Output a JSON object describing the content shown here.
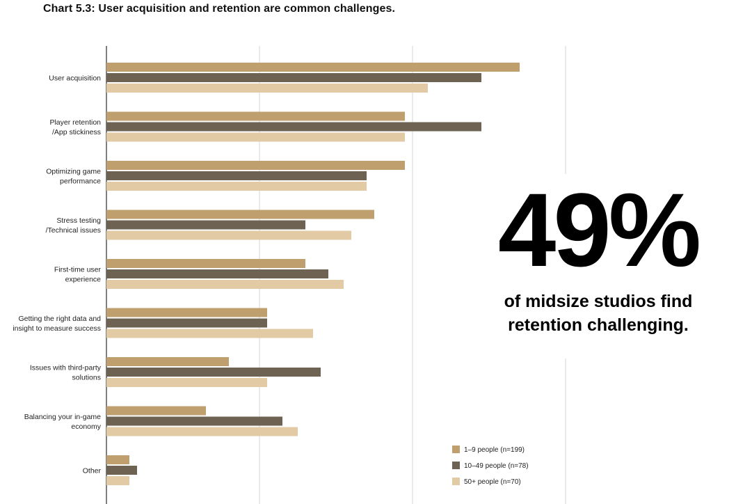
{
  "title": "Chart 5.3: User acquisition and retention are common challenges.",
  "callout": {
    "value": "49%",
    "line1": "of midsize studios find",
    "line2": "retention challenging."
  },
  "colors": {
    "small": "#bf9f6e",
    "medium": "#6e6352",
    "large": "#e2caa4",
    "grid": "#d4d4d4",
    "axis": "#555555"
  },
  "chart_data": {
    "type": "bar",
    "orientation": "horizontal",
    "xlim": [
      0,
      60
    ],
    "grid": true,
    "legend_position": "bottom-right",
    "categories": [
      [
        "User acquisition"
      ],
      [
        "Player retention",
        "/App stickiness"
      ],
      [
        "Optimizing game",
        "performance"
      ],
      [
        "Stress testing",
        "/Technical issues"
      ],
      [
        "First-time user",
        "experience"
      ],
      [
        "Getting the right data and",
        "insight to measure success"
      ],
      [
        "Issues with third-party",
        "solutions"
      ],
      [
        "Balancing your in-game",
        "economy"
      ],
      [
        "Other"
      ]
    ],
    "series": [
      {
        "name": "1–9 people (n=199)",
        "values": [
          54,
          39,
          39,
          35,
          26,
          21,
          16,
          13,
          3
        ]
      },
      {
        "name": "10–49 people (n=78)",
        "values": [
          49,
          49,
          34,
          26,
          29,
          21,
          28,
          23,
          4
        ]
      },
      {
        "name": "50+ people (n=70)",
        "values": [
          42,
          39,
          34,
          32,
          31,
          27,
          21,
          25,
          3
        ]
      }
    ]
  }
}
